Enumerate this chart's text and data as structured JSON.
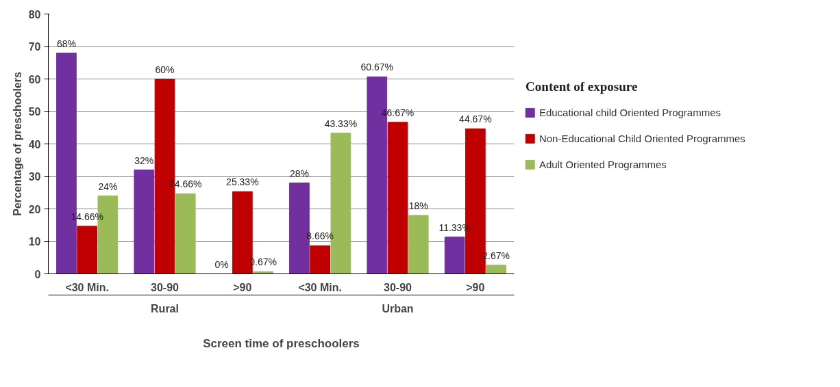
{
  "chart_data": {
    "type": "bar",
    "categories": [
      "<30 Min.",
      "30-90",
      ">90",
      "<30 Min.",
      "30-90",
      ">90"
    ],
    "xlabel": "Screen time of preschoolers",
    "ylabel": "Percentage of preschoolers",
    "legend_title": "Content of exposure",
    "annotations": [
      "Rural",
      "Urban"
    ],
    "series": [
      {
        "name": "Educational child Oriented Programmes",
        "color": "#7030a0",
        "values": [
          68,
          32,
          0,
          28,
          60.67,
          11.33
        ],
        "value_labels": [
          "68%",
          "32%",
          "0%",
          "28%",
          "60.67%",
          "11.33%"
        ]
      },
      {
        "name": "Non-Educational Child Oriented Programmes",
        "color": "#c00000",
        "values": [
          14.66,
          60,
          25.33,
          8.66,
          46.67,
          44.67
        ],
        "value_labels": [
          "14.66%",
          "60%",
          "25.33%",
          "8.66%",
          "46.67%",
          "44.67%"
        ]
      },
      {
        "name": "Adult Oriented Programmes",
        "color": "#9bbb59",
        "values": [
          24,
          24.66,
          0.67,
          43.33,
          18,
          2.67
        ],
        "value_labels": [
          "24%",
          "24.66%",
          "0.67%",
          "43.33%",
          "18%",
          "2.67%"
        ]
      }
    ],
    "ylim": [
      0,
      80
    ],
    "yticks": [
      0,
      10,
      20,
      30,
      40,
      50,
      60,
      70,
      80
    ],
    "grid": "y",
    "legend": "right"
  }
}
